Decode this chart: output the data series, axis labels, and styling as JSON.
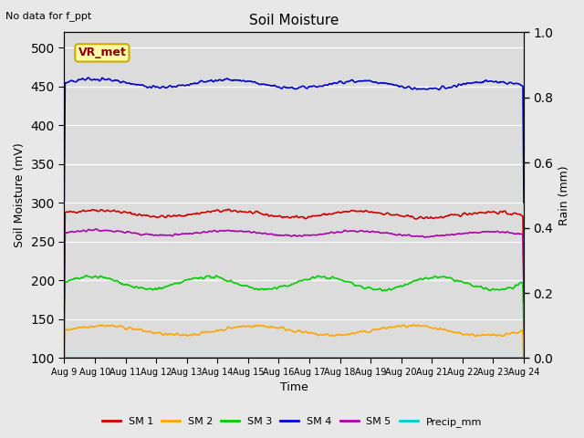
{
  "title": "Soil Moisture",
  "note": "No data for f_ppt",
  "ylabel_left": "Soil Moisture (mV)",
  "ylabel_right": "Rain (mm)",
  "xlabel": "Time",
  "x_tick_labels": [
    "Aug 9",
    "Aug 10",
    "Aug 11",
    "Aug 12",
    "Aug 13",
    "Aug 14",
    "Aug 15",
    "Aug 16",
    "Aug 17",
    "Aug 18",
    "Aug 19",
    "Aug 20",
    "Aug 21",
    "Aug 22",
    "Aug 23",
    "Aug 24"
  ],
  "ylim_left": [
    100,
    520
  ],
  "ylim_right": [
    0.0,
    1.0
  ],
  "yticks_left": [
    100,
    150,
    200,
    250,
    300,
    350,
    400,
    450,
    500
  ],
  "yticks_right": [
    0.0,
    0.2,
    0.4,
    0.6,
    0.8,
    1.0
  ],
  "background_color": "#e8e8e8",
  "plot_bg_color": "#dcdcdc",
  "sm1_color": "#cc0000",
  "sm2_color": "#ffa500",
  "sm3_color": "#00cc00",
  "sm4_color": "#0000cc",
  "sm5_color": "#aa00aa",
  "precip_color": "#00cccc",
  "sm1_base": 287,
  "sm1_amp": 4,
  "sm1_trend": -0.006,
  "sm2_base": 136,
  "sm2_amp": 6,
  "sm2_trend": -0.002,
  "sm3_base": 197,
  "sm3_amp": 8,
  "sm3_trend": -0.002,
  "sm4_base": 455,
  "sm4_amp": 5,
  "sm4_trend": -0.008,
  "sm5_base": 262,
  "sm5_amp": 3,
  "sm5_trend": -0.005,
  "n_points": 500,
  "legend_labels": [
    "SM 1",
    "SM 2",
    "SM 3",
    "SM 4",
    "SM 5",
    "Precip_mm"
  ],
  "vr_met_label": "VR_met",
  "vr_met_text_color": "#880000",
  "vr_met_bg": "#ffffaa",
  "vr_met_edge_color": "#ccaa00"
}
